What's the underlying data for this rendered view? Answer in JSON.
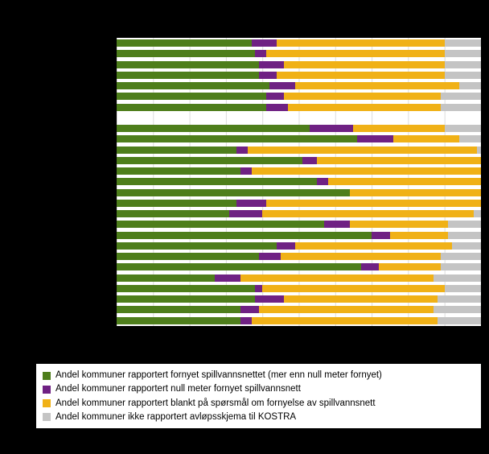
{
  "figure": {
    "background_color": "#000000",
    "plot_background_color": "#ffffff",
    "gridline_color": "#dcdcdc"
  },
  "legend": {
    "items": [
      {
        "label": "Andel kommuner rapportert fornyet spillvannsnettet (mer enn null meter fornyet)",
        "color": "#4e7e1b"
      },
      {
        "label": "Andel kommuner rapportert null meter fornyet spillvannsnett",
        "color": "#6f2183"
      },
      {
        "label": "Andel kommuner rapportert blankt på spørsmål om fornyelse av spillvannsnett",
        "color": "#f0b117"
      },
      {
        "label": "Andel kommuner ikke rapportert avløpsskjema til KOSTRA",
        "color": "#c4c4c4"
      }
    ]
  },
  "chart_data": {
    "type": "bar",
    "orientation": "horizontal",
    "stacked": true,
    "value_unit": "percent",
    "xlim": [
      0,
      100
    ],
    "grid": true,
    "legend_position": "bottom",
    "series": [
      "Andel kommuner rapportert fornyet spillvannsnettet (mer enn null meter fornyet)",
      "Andel kommuner rapportert null meter fornyet spillvannsnett",
      "Andel kommuner rapportert blankt på spørsmål om fornyelse av spillvannsnett",
      "Andel kommuner ikke rapportert avløpsskjema til KOSTRA"
    ],
    "series_keys": [
      "fornyet",
      "null-meter",
      "blankt",
      "ikke-rapportert"
    ],
    "colors": [
      "#4e7e1b",
      "#6f2183",
      "#f0b117",
      "#c4c4c4"
    ],
    "groups": [
      {
        "name": "upper-group",
        "bars": [
          [
            37,
            7,
            46,
            10
          ],
          [
            38,
            3,
            49,
            10
          ],
          [
            39,
            7,
            44,
            10
          ],
          [
            39,
            5,
            46,
            10
          ],
          [
            42,
            7,
            45,
            6
          ],
          [
            41,
            5,
            43,
            11
          ],
          [
            41,
            6,
            42,
            11
          ]
        ]
      },
      {
        "name": "lower-group",
        "bars": [
          [
            53,
            12,
            25,
            10
          ],
          [
            66,
            10,
            18,
            6
          ],
          [
            33,
            3,
            63,
            1
          ],
          [
            51,
            4,
            45,
            0
          ],
          [
            34,
            3,
            63,
            0
          ],
          [
            55,
            3,
            42,
            0
          ],
          [
            64,
            0,
            36,
            0
          ],
          [
            33,
            8,
            59,
            0
          ],
          [
            31,
            9,
            58,
            2
          ],
          [
            57,
            7,
            27,
            9
          ],
          [
            70,
            5,
            16,
            9
          ],
          [
            44,
            5,
            43,
            8
          ],
          [
            39,
            6,
            44,
            11
          ],
          [
            67,
            5,
            17,
            11
          ],
          [
            27,
            7,
            53,
            13
          ],
          [
            38,
            2,
            50,
            10
          ],
          [
            38,
            8,
            42,
            12
          ],
          [
            34,
            5,
            48,
            13
          ],
          [
            34,
            3,
            51,
            12
          ]
        ]
      }
    ]
  }
}
